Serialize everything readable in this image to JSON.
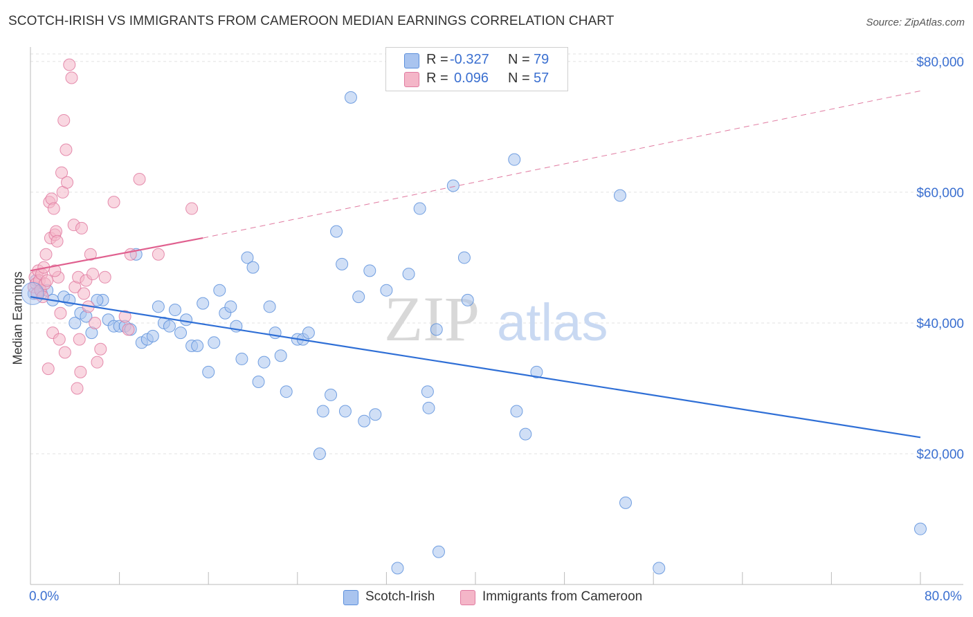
{
  "title": "SCOTCH-IRISH VS IMMIGRANTS FROM CAMEROON MEDIAN EARNINGS CORRELATION CHART",
  "source": "Source: ZipAtlas.com",
  "watermark": {
    "zip": "ZIP",
    "atlas": "atlas"
  },
  "legend": {
    "rows": [
      {
        "r_label": "R =",
        "r_value": "-0.327",
        "n_label": "N =",
        "n_value": "79",
        "color": "#a9c4ef"
      },
      {
        "r_label": "R =",
        "r_value": "0.096",
        "n_label": "N =",
        "n_value": "57",
        "color": "#f4b6c8"
      }
    ]
  },
  "bottom_legend": {
    "items": [
      {
        "label": "Scotch-Irish",
        "color": "#a9c4ef"
      },
      {
        "label": "Immigrants from Cameroon",
        "color": "#f4b6c8"
      }
    ]
  },
  "chart_data": {
    "type": "scatter",
    "title": "SCOTCH-IRISH VS IMMIGRANTS FROM CAMEROON MEDIAN EARNINGS CORRELATION CHART",
    "xlabel": "",
    "ylabel": "Median Earnings",
    "xlim": [
      0,
      80
    ],
    "ylim": [
      0,
      82000
    ],
    "x_tick_labels": [
      "0.0%",
      "80.0%"
    ],
    "y_ticks": [
      20000,
      40000,
      60000,
      80000
    ],
    "y_tick_labels": [
      "$20,000",
      "$40,000",
      "$60,000",
      "$80,000"
    ],
    "grid": true,
    "legend_position": "top-center",
    "series": [
      {
        "name": "Scotch-Irish",
        "color": "#5b8fdc",
        "fill": "#a9c4ef",
        "points": [
          [
            0.5,
            46500
          ],
          [
            1.0,
            44500
          ],
          [
            1.5,
            45000
          ],
          [
            2.0,
            43500
          ],
          [
            3.0,
            44000
          ],
          [
            3.5,
            43500
          ],
          [
            4.0,
            40000
          ],
          [
            4.5,
            41500
          ],
          [
            5.0,
            41000
          ],
          [
            5.5,
            38500
          ],
          [
            6.5,
            43500
          ],
          [
            7.0,
            40500
          ],
          [
            7.5,
            39500
          ],
          [
            8.0,
            39500
          ],
          [
            8.5,
            39500
          ],
          [
            9.0,
            39000
          ],
          [
            9.5,
            50500
          ],
          [
            10.0,
            37000
          ],
          [
            10.5,
            37500
          ],
          [
            11.0,
            38000
          ],
          [
            11.5,
            42500
          ],
          [
            12.0,
            40000
          ],
          [
            12.5,
            39500
          ],
          [
            13.0,
            42000
          ],
          [
            13.5,
            38500
          ],
          [
            14.0,
            40500
          ],
          [
            14.5,
            36500
          ],
          [
            15.0,
            36500
          ],
          [
            15.5,
            43000
          ],
          [
            16.0,
            32500
          ],
          [
            16.5,
            37000
          ],
          [
            17.0,
            45000
          ],
          [
            17.5,
            41500
          ],
          [
            18.0,
            42500
          ],
          [
            18.5,
            39500
          ],
          [
            19.0,
            34500
          ],
          [
            19.5,
            50000
          ],
          [
            20.0,
            48500
          ],
          [
            20.5,
            31000
          ],
          [
            21.0,
            34000
          ],
          [
            21.5,
            42500
          ],
          [
            22.0,
            38500
          ],
          [
            22.5,
            35000
          ],
          [
            23.0,
            29500
          ],
          [
            24.0,
            37500
          ],
          [
            24.5,
            37500
          ],
          [
            25.0,
            38500
          ],
          [
            26.0,
            20000
          ],
          [
            26.3,
            26500
          ],
          [
            27.0,
            29000
          ],
          [
            27.5,
            54000
          ],
          [
            28.0,
            49000
          ],
          [
            28.3,
            26500
          ],
          [
            28.8,
            74500
          ],
          [
            29.5,
            44000
          ],
          [
            30.0,
            25000
          ],
          [
            30.5,
            48000
          ],
          [
            31.0,
            26000
          ],
          [
            32.0,
            45000
          ],
          [
            33.0,
            2500
          ],
          [
            34.0,
            47500
          ],
          [
            35.0,
            57500
          ],
          [
            35.7,
            29500
          ],
          [
            35.8,
            27000
          ],
          [
            36.5,
            39000
          ],
          [
            36.7,
            5000
          ],
          [
            38.0,
            61000
          ],
          [
            39.0,
            50000
          ],
          [
            39.3,
            43500
          ],
          [
            43.5,
            65000
          ],
          [
            43.7,
            26500
          ],
          [
            44.5,
            23000
          ],
          [
            45.5,
            32500
          ],
          [
            53.0,
            59500
          ],
          [
            53.5,
            12500
          ],
          [
            56.5,
            2500
          ],
          [
            80.0,
            8500
          ],
          [
            0.3,
            44500
          ],
          [
            6.0,
            43500
          ]
        ],
        "trend": {
          "x": [
            0,
            80
          ],
          "y": [
            44000,
            22500
          ]
        }
      },
      {
        "name": "Immigrants from Cameroon",
        "color": "#e07aa0",
        "fill": "#f4b6c8",
        "points": [
          [
            0.3,
            45500
          ],
          [
            0.4,
            47000
          ],
          [
            0.5,
            46000
          ],
          [
            0.6,
            44500
          ],
          [
            0.7,
            48000
          ],
          [
            0.8,
            46500
          ],
          [
            0.9,
            45000
          ],
          [
            1.0,
            47500
          ],
          [
            1.1,
            44000
          ],
          [
            1.2,
            48500
          ],
          [
            1.3,
            46000
          ],
          [
            1.4,
            50500
          ],
          [
            1.5,
            46500
          ],
          [
            1.6,
            33000
          ],
          [
            1.7,
            58500
          ],
          [
            1.8,
            53000
          ],
          [
            1.9,
            59000
          ],
          [
            2.0,
            38500
          ],
          [
            2.1,
            57500
          ],
          [
            2.2,
            53500
          ],
          [
            2.3,
            54000
          ],
          [
            2.4,
            52500
          ],
          [
            2.5,
            47000
          ],
          [
            2.6,
            37500
          ],
          [
            2.7,
            41500
          ],
          [
            2.8,
            63000
          ],
          [
            2.9,
            60000
          ],
          [
            3.0,
            71000
          ],
          [
            3.1,
            35500
          ],
          [
            3.2,
            66500
          ],
          [
            3.3,
            61500
          ],
          [
            3.5,
            79500
          ],
          [
            3.7,
            77500
          ],
          [
            3.9,
            55000
          ],
          [
            4.0,
            45500
          ],
          [
            4.2,
            30000
          ],
          [
            4.3,
            47000
          ],
          [
            4.4,
            37500
          ],
          [
            4.5,
            32500
          ],
          [
            4.6,
            54500
          ],
          [
            4.8,
            44500
          ],
          [
            5.0,
            46500
          ],
          [
            5.2,
            42500
          ],
          [
            5.4,
            50500
          ],
          [
            5.6,
            47500
          ],
          [
            5.8,
            40000
          ],
          [
            6.0,
            34000
          ],
          [
            6.3,
            36000
          ],
          [
            6.7,
            47000
          ],
          [
            7.5,
            58500
          ],
          [
            8.5,
            41000
          ],
          [
            8.8,
            39000
          ],
          [
            9.0,
            50500
          ],
          [
            9.8,
            62000
          ],
          [
            11.5,
            50500
          ],
          [
            14.5,
            57500
          ],
          [
            2.2,
            48000
          ]
        ],
        "trend": {
          "x": [
            0,
            15.5
          ],
          "y": [
            48000,
            53000
          ]
        },
        "trend_extended": {
          "x": [
            15.5,
            80
          ],
          "y": [
            53000,
            75500
          ]
        }
      }
    ]
  }
}
